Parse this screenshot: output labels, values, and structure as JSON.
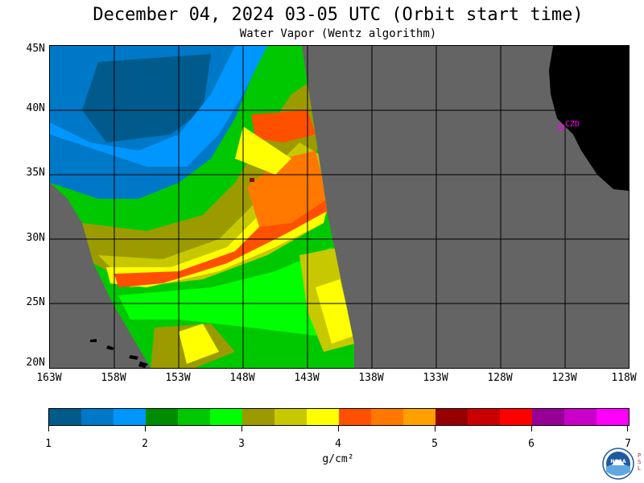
{
  "header": {
    "title": "December 04, 2024  03-05 UTC  (Orbit start time)",
    "subtitle": "Water Vapor (Wentz algorithm)"
  },
  "map": {
    "lat_labels": [
      "45N",
      "40N",
      "35N",
      "30N",
      "25N",
      "20N"
    ],
    "lon_labels": [
      "163W",
      "158W",
      "153W",
      "148W",
      "143W",
      "138W",
      "133W",
      "128W",
      "123W",
      "118W"
    ],
    "station_label": "CZD",
    "background_color": "#646464",
    "land_color": "#000000",
    "station_color": "#ff00ff"
  },
  "colorbar": {
    "colors": [
      "#005a8c",
      "#0078c8",
      "#0096ff",
      "#008c00",
      "#00c800",
      "#00ff00",
      "#9b9b00",
      "#c8c800",
      "#ffff00",
      "#ff5000",
      "#ff7800",
      "#ffa000",
      "#960000",
      "#c80000",
      "#ff0000",
      "#960096",
      "#c800c8",
      "#ff00ff"
    ],
    "tick_labels": [
      "1",
      "2",
      "3",
      "4",
      "5",
      "6",
      "7"
    ],
    "unit": "g/cm²"
  },
  "logo": {
    "name": "NOAA",
    "side_text": "PSL"
  }
}
